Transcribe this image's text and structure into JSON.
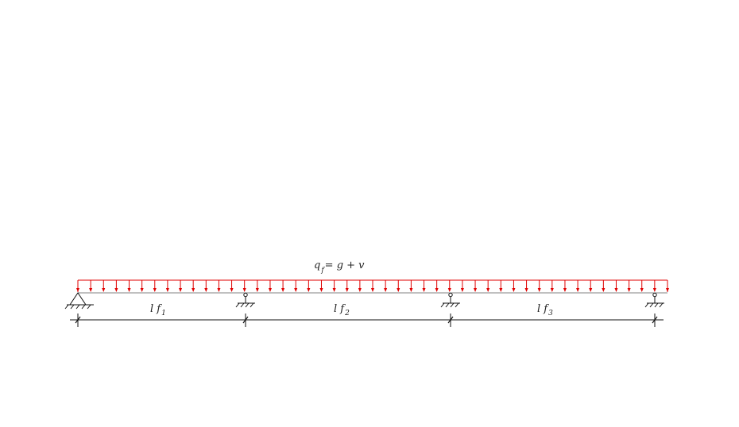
{
  "load": {
    "symbol": "q",
    "subscript": "f",
    "rest": "= g + v",
    "color": "#e00000"
  },
  "spans": [
    {
      "label": "l f",
      "index": "1"
    },
    {
      "label": "l f",
      "index": "2"
    },
    {
      "label": "l f",
      "index": "3"
    }
  ],
  "supports": [
    {
      "type": "pin"
    },
    {
      "type": "roller"
    },
    {
      "type": "roller"
    },
    {
      "type": "roller"
    }
  ],
  "colors": {
    "beam": "#9a9a9a",
    "load": "#e00000",
    "lines": "#111111"
  }
}
